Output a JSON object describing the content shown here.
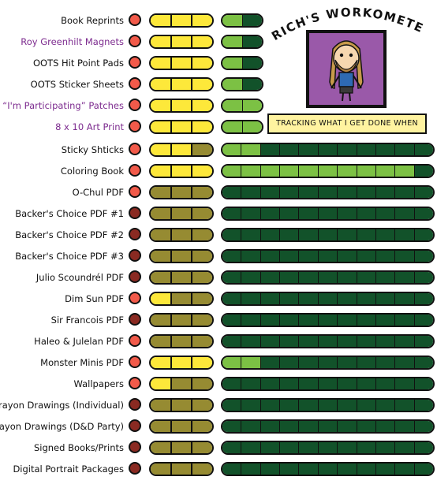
{
  "header": {
    "title": "RICH'S WORKOMETER!",
    "tagline": "TRACKING WHAT I GET DONE WHEN"
  },
  "colors": {
    "status_bright": "#f25a4a",
    "status_dark": "#8a2a22",
    "yellow": "#fde83a",
    "olive": "#968b32",
    "light_green": "#7cc144",
    "dark_green": "#12522a",
    "purple_label": "#7d2c8f"
  },
  "items": [
    {
      "label": "Book Reprints",
      "purple": false,
      "status": "bright",
      "stages_done": 3,
      "progress_total": 2,
      "progress_done": 1
    },
    {
      "label": "Roy Greenhilt Magnets",
      "purple": true,
      "status": "bright",
      "stages_done": 3,
      "progress_total": 2,
      "progress_done": 1
    },
    {
      "label": "OOTS Hit Point Pads",
      "purple": false,
      "status": "bright",
      "stages_done": 3,
      "progress_total": 2,
      "progress_done": 1
    },
    {
      "label": "OOTS Sticker Sheets",
      "purple": false,
      "status": "bright",
      "stages_done": 3,
      "progress_total": 2,
      "progress_done": 1
    },
    {
      "label": "“I'm Participating” Patches",
      "purple": true,
      "status": "bright",
      "stages_done": 3,
      "progress_total": 2,
      "progress_done": 2
    },
    {
      "label": "8 x 10 Art Print",
      "purple": true,
      "status": "bright",
      "stages_done": 3,
      "progress_total": 2,
      "progress_done": 2
    },
    {
      "label": "Sticky Shticks",
      "purple": false,
      "status": "bright",
      "stages_done": 2,
      "progress_total": 11,
      "progress_done": 2
    },
    {
      "label": "Coloring Book",
      "purple": false,
      "status": "bright",
      "stages_done": 3,
      "progress_total": 11,
      "progress_done": 10
    },
    {
      "label": "O-Chul PDF",
      "purple": false,
      "status": "bright",
      "stages_done": 0,
      "progress_total": 11,
      "progress_done": 0
    },
    {
      "label": "Backer's Choice PDF #1",
      "purple": false,
      "status": "dark",
      "stages_done": 0,
      "progress_total": 11,
      "progress_done": 0
    },
    {
      "label": "Backer's Choice PDF #2",
      "purple": false,
      "status": "dark",
      "stages_done": 0,
      "progress_total": 11,
      "progress_done": 0
    },
    {
      "label": "Backer's Choice PDF #3",
      "purple": false,
      "status": "dark",
      "stages_done": 0,
      "progress_total": 11,
      "progress_done": 0
    },
    {
      "label": "Julio Scoundrél PDF",
      "purple": false,
      "status": "dark",
      "stages_done": 0,
      "progress_total": 11,
      "progress_done": 0
    },
    {
      "label": "Dim Sun PDF",
      "purple": false,
      "status": "bright",
      "stages_done": 1,
      "progress_total": 11,
      "progress_done": 0
    },
    {
      "label": "Sir Francois  PDF",
      "purple": false,
      "status": "dark",
      "stages_done": 0,
      "progress_total": 11,
      "progress_done": 0
    },
    {
      "label": "Haleo & Julelan PDF",
      "purple": false,
      "status": "bright",
      "stages_done": 0,
      "progress_total": 11,
      "progress_done": 0
    },
    {
      "label": "Monster Minis PDF",
      "purple": false,
      "status": "bright",
      "stages_done": 3,
      "progress_total": 11,
      "progress_done": 2
    },
    {
      "label": "Wallpapers",
      "purple": false,
      "status": "bright",
      "stages_done": 1,
      "progress_total": 11,
      "progress_done": 0
    },
    {
      "label": "Crayon Drawings (Individual)",
      "purple": false,
      "status": "dark",
      "stages_done": 0,
      "progress_total": 11,
      "progress_done": 0
    },
    {
      "label": "Crayon Drawings (D&D Party)",
      "purple": false,
      "status": "dark",
      "stages_done": 0,
      "progress_total": 11,
      "progress_done": 0
    },
    {
      "label": "Signed Books/Prints",
      "purple": false,
      "status": "dark",
      "stages_done": 0,
      "progress_total": 11,
      "progress_done": 0
    },
    {
      "label": "Digital Portrait Packages",
      "purple": false,
      "status": "dark",
      "stages_done": 0,
      "progress_total": 11,
      "progress_done": 0
    }
  ]
}
